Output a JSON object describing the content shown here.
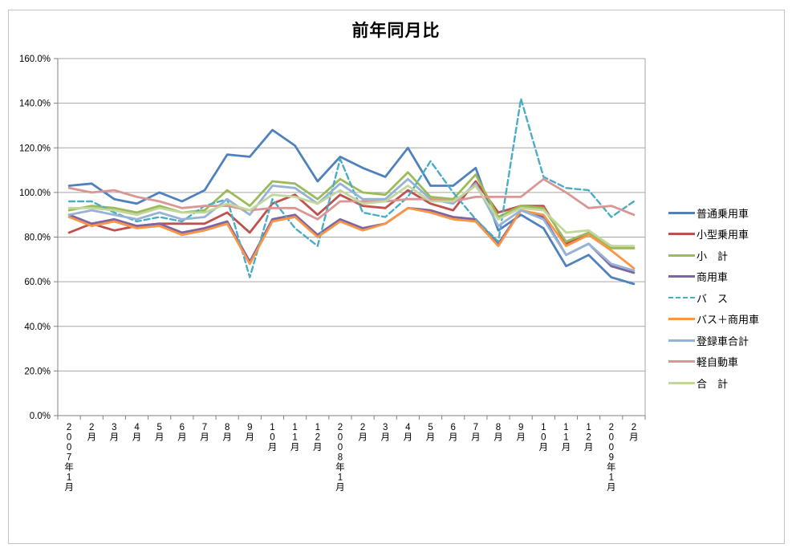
{
  "chart": {
    "title": "前年同月比",
    "legend_position": "right"
  },
  "chart_data": {
    "type": "line",
    "title": "前年同月比",
    "xlabel": "",
    "ylabel": "",
    "ylim": [
      0,
      160
    ],
    "y_tick_step": 20,
    "y_tick_labels": [
      "0.0%",
      "20.0%",
      "40.0%",
      "60.0%",
      "80.0%",
      "100.0%",
      "120.0%",
      "140.0%",
      "160.0%"
    ],
    "grid": true,
    "legend_position": "right",
    "unit": "percent",
    "categories": [
      "2007年1月",
      "2月",
      "3月",
      "4月",
      "5月",
      "6月",
      "7月",
      "8月",
      "9月",
      "10月",
      "11月",
      "12月",
      "2008年1月",
      "2月",
      "3月",
      "4月",
      "5月",
      "6月",
      "7月",
      "8月",
      "9月",
      "10月",
      "11月",
      "12月",
      "2009年1月",
      "2月"
    ],
    "series": [
      {
        "name": "普通乗用車",
        "color": "#4F81BD",
        "dash": "solid",
        "values": [
          103,
          104,
          97,
          95,
          100,
          96,
          101,
          117,
          116,
          128,
          121,
          105,
          116,
          111,
          107,
          120,
          103,
          103,
          111,
          83,
          90,
          84,
          67,
          72,
          62,
          59
        ]
      },
      {
        "name": "小型乗用車",
        "color": "#C0504D",
        "dash": "solid",
        "values": [
          82,
          86,
          83,
          85,
          86,
          86,
          86,
          91,
          82,
          95,
          99,
          90,
          99,
          94,
          93,
          101,
          95,
          92,
          105,
          91,
          94,
          94,
          77,
          82,
          76,
          75
        ]
      },
      {
        "name": "小　計",
        "color": "#9BBB59",
        "dash": "solid",
        "values": [
          92,
          94,
          93,
          91,
          94,
          91,
          92,
          101,
          94,
          105,
          104,
          97,
          106,
          100,
          99,
          109,
          98,
          97,
          108,
          89,
          94,
          93,
          78,
          82,
          75,
          75
        ]
      },
      {
        "name": "商用車",
        "color": "#8064A2",
        "dash": "solid",
        "values": [
          90,
          86,
          88,
          85,
          86,
          82,
          84,
          87,
          69,
          88,
          90,
          81,
          88,
          84,
          86,
          93,
          92,
          89,
          88,
          77,
          92,
          89,
          72,
          77,
          67,
          64
        ]
      },
      {
        "name": "バ　ス",
        "color": "#4BACC6",
        "dash": "dashed",
        "values": [
          96,
          96,
          91,
          87,
          89,
          87,
          94,
          97,
          62,
          97,
          84,
          76,
          115,
          91,
          89,
          98,
          114,
          100,
          88,
          78,
          142,
          107,
          102,
          101,
          89,
          96
        ]
      },
      {
        "name": "バス＋商用車",
        "color": "#F79646",
        "dash": "solid",
        "values": [
          89,
          85,
          87,
          84,
          85,
          81,
          83,
          86,
          68,
          87,
          89,
          80,
          87,
          83,
          86,
          93,
          91,
          88,
          87,
          76,
          92,
          90,
          76,
          81,
          74,
          66
        ]
      },
      {
        "name": "登録車合計",
        "color": "#95B3D7",
        "dash": "solid",
        "values": [
          90,
          92,
          90,
          88,
          91,
          88,
          89,
          97,
          90,
          103,
          102,
          95,
          104,
          97,
          97,
          106,
          97,
          95,
          104,
          85,
          92,
          88,
          72,
          77,
          68,
          65
        ]
      },
      {
        "name": "軽自動車",
        "color": "#D99694",
        "dash": "solid",
        "values": [
          102,
          100,
          101,
          98,
          96,
          93,
          94,
          94,
          92,
          93,
          93,
          88,
          96,
          96,
          96,
          97,
          97,
          96,
          98,
          98,
          98,
          106,
          100,
          93,
          94,
          90
        ]
      },
      {
        "name": "合　計",
        "color": "#C3D69B",
        "dash": "solid",
        "values": [
          93,
          93,
          92,
          90,
          93,
          91,
          91,
          95,
          92,
          99,
          98,
          95,
          101,
          95,
          96,
          103,
          96,
          96,
          103,
          88,
          93,
          92,
          82,
          83,
          76,
          76
        ]
      }
    ]
  }
}
